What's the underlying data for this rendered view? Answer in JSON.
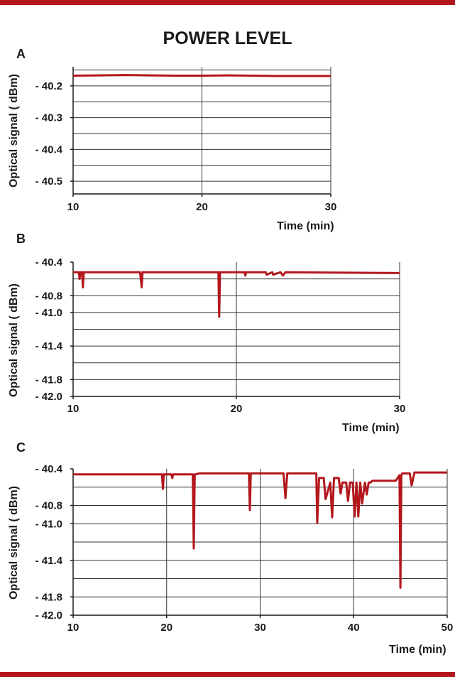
{
  "title": "POWER LEVEL",
  "colors": {
    "series": "#b3161b",
    "grid": "#333333",
    "bars": "#b3161b"
  },
  "chart_data": [
    {
      "type": "line",
      "panel": "A",
      "xlabel": "Time (min)",
      "ylabel": "Optical signal ( dBm)",
      "xlim": [
        10,
        30
      ],
      "ylim": [
        -40.54,
        -40.14
      ],
      "xticks": [
        10,
        20,
        30
      ],
      "yticks": [
        -40.2,
        -40.3,
        -40.4,
        -40.5
      ],
      "ytick_labels": [
        "- 40.2",
        "- 40.3",
        "- 40.4",
        "- 40.5"
      ],
      "hgrid": [
        -40.15,
        -40.2,
        -40.25,
        -40.3,
        -40.35,
        -40.4,
        -40.45,
        -40.5
      ],
      "vgrid": [
        20
      ],
      "grid": true,
      "series": [
        {
          "x": [
            10,
            12,
            14,
            16,
            18,
            20,
            22,
            24,
            26,
            28,
            30
          ],
          "y": [
            -40.168,
            -40.167,
            -40.166,
            -40.167,
            -40.168,
            -40.168,
            -40.167,
            -40.168,
            -40.169,
            -40.169,
            -40.169
          ]
        }
      ]
    },
    {
      "type": "line",
      "panel": "B",
      "xlabel": "Time (min)",
      "ylabel": "Optical signal ( dBm)",
      "xlim": [
        10,
        30
      ],
      "ylim": [
        -42.0,
        -40.4
      ],
      "xticks": [
        10,
        20,
        30
      ],
      "yticks": [
        -40.4,
        -40.8,
        -41.0,
        -41.4,
        -41.8,
        -42.0
      ],
      "ytick_labels": [
        "- 40.4",
        "- 40.8",
        "- 41.0",
        "- 41.4",
        "- 41.8",
        "- 42.0"
      ],
      "hgrid": [
        -40.6,
        -40.8,
        -41.0,
        -41.2,
        -41.4,
        -41.6,
        -41.8
      ],
      "vgrid": [
        20
      ],
      "grid": true,
      "series": [
        {
          "x": [
            10,
            10.35,
            10.4,
            10.45,
            10.55,
            10.6,
            10.65,
            14.1,
            14.2,
            14.25,
            14.3,
            18.9,
            18.95,
            19.0,
            19.05,
            20.5,
            20.55,
            20.6,
            21.8,
            21.85,
            22.2,
            22.25,
            22.7,
            22.85,
            23.0,
            30
          ],
          "y": [
            -40.52,
            -40.52,
            -40.6,
            -40.52,
            -40.52,
            -40.7,
            -40.52,
            -40.52,
            -40.7,
            -40.52,
            -40.52,
            -40.52,
            -41.05,
            -40.52,
            -40.52,
            -40.52,
            -40.56,
            -40.52,
            -40.52,
            -40.55,
            -40.52,
            -40.55,
            -40.52,
            -40.56,
            -40.52,
            -40.53
          ]
        }
      ]
    },
    {
      "type": "line",
      "panel": "C",
      "xlabel": "Time (min)",
      "ylabel": "Optical signal ( dBm)",
      "xlim": [
        10,
        50
      ],
      "ylim": [
        -42.0,
        -40.4
      ],
      "xticks": [
        10,
        20,
        30,
        40,
        50
      ],
      "yticks": [
        -40.4,
        -40.8,
        -41.0,
        -41.4,
        -41.8,
        -42.0
      ],
      "ytick_labels": [
        "- 40.4",
        "- 40.8",
        "- 41.0",
        "- 41.4",
        "- 41.8",
        "- 42.0"
      ],
      "hgrid": [
        -40.6,
        -40.8,
        -41.0,
        -41.2,
        -41.4,
        -41.6,
        -41.8
      ],
      "vgrid": [
        20,
        30,
        40
      ],
      "grid": true,
      "series": [
        {
          "x": [
            10,
            19.5,
            19.6,
            19.7,
            20.5,
            20.6,
            20.7,
            22.8,
            22.9,
            23.0,
            23.1,
            23.5,
            28.8,
            28.9,
            29.0,
            32.5,
            32.7,
            32.9,
            36.0,
            36.1,
            36.3,
            36.8,
            37.0,
            37.5,
            37.7,
            37.9,
            38.4,
            38.6,
            38.8,
            39.2,
            39.4,
            39.6,
            39.9,
            40.1,
            40.3,
            40.5,
            40.7,
            40.9,
            41.2,
            41.4,
            41.6,
            41.8,
            42.0,
            42.5,
            43.0,
            43.5,
            44.0,
            44.5,
            44.9,
            45.0,
            45.1,
            45.2,
            45.5,
            46.0,
            46.2,
            46.5,
            50
          ],
          "y": [
            -40.46,
            -40.46,
            -40.62,
            -40.46,
            -40.46,
            -40.5,
            -40.46,
            -40.46,
            -41.27,
            -40.46,
            -40.46,
            -40.45,
            -40.45,
            -40.85,
            -40.45,
            -40.45,
            -40.72,
            -40.45,
            -40.45,
            -40.99,
            -40.5,
            -40.5,
            -40.73,
            -40.55,
            -40.93,
            -40.5,
            -40.5,
            -40.67,
            -40.55,
            -40.55,
            -40.75,
            -40.55,
            -40.55,
            -40.92,
            -40.55,
            -40.92,
            -40.55,
            -40.78,
            -40.55,
            -40.68,
            -40.55,
            -40.55,
            -40.53,
            -40.53,
            -40.53,
            -40.53,
            -40.53,
            -40.53,
            -40.47,
            -41.7,
            -40.47,
            -40.45,
            -40.45,
            -40.45,
            -40.58,
            -40.44,
            -40.44
          ]
        }
      ]
    }
  ]
}
